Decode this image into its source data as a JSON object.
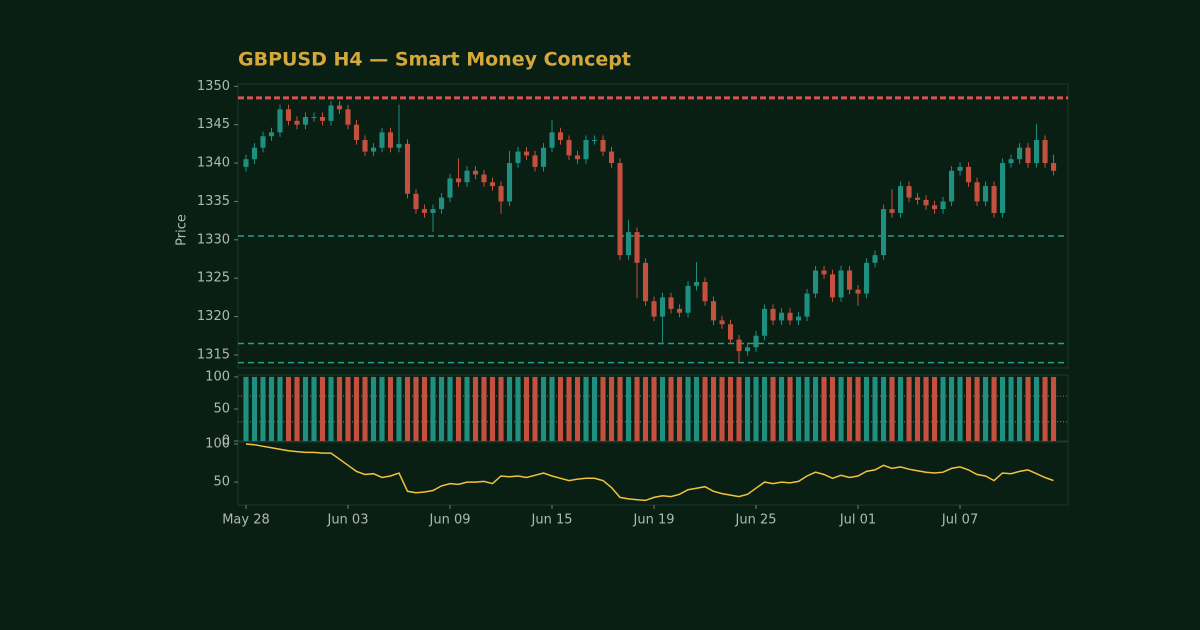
{
  "chart_data": [
    {
      "type": "candlestick",
      "title": "GBPUSD H4 — Smart Money Concept",
      "ylabel": "Price",
      "x": [
        0,
        1,
        2,
        3,
        4,
        5,
        6,
        7,
        8,
        9,
        10,
        11,
        12,
        13,
        14,
        15,
        16,
        17,
        18,
        19,
        20,
        21,
        22,
        23,
        24,
        25,
        26,
        27,
        28,
        29,
        30,
        31,
        32,
        33,
        34,
        35,
        36,
        37,
        38,
        39,
        40,
        41,
        42,
        43,
        44,
        45,
        46,
        47,
        48,
        49,
        50,
        51,
        52,
        53,
        54,
        55,
        56,
        57,
        58,
        59,
        60,
        61,
        62,
        63,
        64,
        65,
        66,
        67,
        68,
        69,
        70,
        71,
        72,
        73,
        74,
        75,
        76,
        77,
        78,
        79,
        80,
        81,
        82,
        83,
        84,
        85,
        86,
        87,
        88,
        89,
        90,
        91,
        92,
        93,
        94,
        95
      ],
      "open": [
        1339.5,
        1340.5,
        1342,
        1343.5,
        1344,
        1347,
        1345.5,
        1345,
        1346,
        1346,
        1345.5,
        1347.5,
        1347,
        1345,
        1343,
        1341.5,
        1342,
        1344,
        1342,
        1342.5,
        1336,
        1334,
        1333.5,
        1334,
        1335.5,
        1338,
        1337.5,
        1339,
        1338.5,
        1337.5,
        1337,
        1335,
        1340,
        1341.5,
        1341,
        1339.5,
        1342,
        1344,
        1343,
        1341,
        1340.5,
        1343,
        1343,
        1341.5,
        1340,
        1328,
        1331,
        1327,
        1322,
        1320,
        1322.5,
        1321,
        1320.5,
        1324,
        1324.5,
        1322,
        1319.5,
        1319,
        1317,
        1315.5,
        1316,
        1317.5,
        1321,
        1319.5,
        1320.5,
        1319.5,
        1320,
        1323,
        1326,
        1325.5,
        1322.5,
        1326,
        1323.5,
        1323,
        1327,
        1328,
        1334,
        1333.5,
        1337,
        1335.5,
        1335.2,
        1334.5,
        1334,
        1335,
        1339,
        1339.5,
        1337.5,
        1335,
        1337,
        1333.5,
        1340,
        1340.5,
        1342,
        1340,
        1343,
        1340
      ],
      "high": [
        1341.1,
        1342.6,
        1344.1,
        1344.6,
        1347.6,
        1347.6,
        1346.1,
        1346.6,
        1346.6,
        1346.6,
        1348.1,
        1348.1,
        1347.6,
        1345.6,
        1343.6,
        1342.6,
        1344.6,
        1344.6,
        1347.6,
        1343.1,
        1336.6,
        1334.6,
        1334.6,
        1336.1,
        1338.6,
        1340.6,
        1339.6,
        1339.6,
        1339.1,
        1338.1,
        1337.6,
        1341.6,
        1342.1,
        1342.1,
        1341.6,
        1342.6,
        1345.6,
        1344.6,
        1343.6,
        1341.6,
        1343.6,
        1343.6,
        1343.6,
        1342.1,
        1340.6,
        1332.6,
        1331.6,
        1327.6,
        1322.6,
        1323.1,
        1323.1,
        1321.6,
        1324.6,
        1327.1,
        1325.1,
        1322.6,
        1320.1,
        1319.6,
        1317.6,
        1316.6,
        1318.1,
        1321.6,
        1321.6,
        1321.1,
        1321.1,
        1320.6,
        1323.6,
        1326.6,
        1326.6,
        1326.1,
        1326.6,
        1326.6,
        1324.1,
        1327.6,
        1328.6,
        1334.6,
        1336.6,
        1337.6,
        1337.6,
        1336.1,
        1335.8,
        1335.1,
        1335.6,
        1339.6,
        1340.1,
        1340.1,
        1338.1,
        1337.6,
        1337.6,
        1340.6,
        1341.1,
        1342.6,
        1342.6,
        1345.1,
        1343.6,
        1341.1
      ],
      "low": [
        1338.9,
        1339.9,
        1341.4,
        1342.9,
        1343.4,
        1344.9,
        1344.4,
        1344.4,
        1345.4,
        1344.9,
        1344.9,
        1346.4,
        1344.4,
        1342.4,
        1340.9,
        1340.9,
        1341.4,
        1341.4,
        1341.4,
        1335.4,
        1333.4,
        1332.9,
        1331.0,
        1333.4,
        1334.9,
        1336.9,
        1336.9,
        1337.9,
        1336.9,
        1336.4,
        1333.4,
        1334.4,
        1339.4,
        1340.4,
        1338.9,
        1338.9,
        1341.4,
        1342.4,
        1340.4,
        1339.9,
        1339.9,
        1342.4,
        1340.9,
        1339.4,
        1327.4,
        1327.4,
        1322.4,
        1321.4,
        1319.4,
        1316.4,
        1320.4,
        1319.9,
        1319.9,
        1323.4,
        1321.4,
        1318.9,
        1318.4,
        1316.4,
        1313.9,
        1314.9,
        1315.4,
        1316.9,
        1318.9,
        1318.9,
        1318.9,
        1318.9,
        1319.4,
        1322.4,
        1324.9,
        1321.9,
        1321.9,
        1322.9,
        1321.4,
        1322.4,
        1326.4,
        1327.4,
        1332.9,
        1332.9,
        1334.9,
        1334.6,
        1333.9,
        1333.4,
        1333.4,
        1334.4,
        1338.4,
        1336.9,
        1334.4,
        1334.4,
        1332.9,
        1332.9,
        1339.4,
        1339.9,
        1339.4,
        1339.4,
        1339.4,
        1338.4
      ],
      "close": [
        1340.5,
        1342,
        1343.5,
        1344,
        1347,
        1345.5,
        1345,
        1346,
        1346,
        1345.5,
        1347.5,
        1347,
        1345,
        1343,
        1341.5,
        1342,
        1344,
        1342,
        1342.5,
        1336,
        1334,
        1333.5,
        1334,
        1335.5,
        1338,
        1337.5,
        1339,
        1338.5,
        1337.5,
        1337,
        1335,
        1340,
        1341.5,
        1341,
        1339.5,
        1342,
        1344,
        1343,
        1341,
        1340.5,
        1343,
        1343,
        1341.5,
        1340,
        1328,
        1331,
        1327,
        1322,
        1320,
        1322.5,
        1321,
        1320.5,
        1324,
        1324.5,
        1322,
        1319.5,
        1319,
        1317,
        1315.5,
        1316,
        1317.5,
        1321,
        1319.5,
        1320.5,
        1319.5,
        1320,
        1323,
        1326,
        1325.5,
        1322.5,
        1326,
        1323.5,
        1323,
        1327,
        1328,
        1334,
        1333.5,
        1337,
        1335.5,
        1335.2,
        1334.5,
        1334,
        1335,
        1339,
        1339.5,
        1337.5,
        1335,
        1337,
        1333.5,
        1340,
        1340.5,
        1342,
        1340,
        1343,
        1340,
        1339
      ],
      "up_color": "#1f8f80",
      "down_color": "#c4503f",
      "levels": [
        {
          "value": 1348.5,
          "color": "#d9534f"
        },
        {
          "value": 1330.5,
          "color": "#2a9d8f"
        },
        {
          "value": 1316.5,
          "color": "#2a9d8f"
        },
        {
          "value": 1314,
          "color": "#2a9d8f"
        }
      ],
      "xlim": [
        -0.94,
        96.7
      ],
      "ylim": [
        1313.3,
        1350.3
      ],
      "yticks": [
        1315,
        1320,
        1325,
        1330,
        1335,
        1340,
        1345,
        1350
      ]
    },
    {
      "type": "bar",
      "values": [
        100,
        100,
        100,
        100,
        100,
        100,
        100,
        100,
        100,
        100,
        100,
        100,
        100,
        100,
        100,
        100,
        100,
        100,
        100,
        100,
        100,
        100,
        100,
        100,
        100,
        100,
        100,
        100,
        100,
        100,
        100,
        100,
        100,
        100,
        100,
        100,
        100,
        100,
        100,
        100,
        100,
        100,
        100,
        100,
        100,
        100,
        100,
        100,
        100,
        100,
        100,
        100,
        100,
        100,
        100,
        100,
        100,
        100,
        100,
        100,
        100,
        100,
        100,
        100,
        100,
        100,
        100,
        100,
        100,
        100,
        100,
        100,
        100,
        100,
        100,
        100,
        100,
        100,
        100,
        100,
        100,
        100,
        100,
        100,
        100,
        100,
        100,
        100,
        100,
        100,
        100,
        100,
        100,
        100,
        100,
        100
      ],
      "levels": [
        70,
        30
      ],
      "xlim": [
        -0.94,
        96.7
      ],
      "ylim": [
        0,
        103
      ],
      "yticks": [
        0,
        50,
        100
      ]
    },
    {
      "type": "line",
      "color": "#f2c23e",
      "values": [
        100,
        99,
        97,
        95,
        93,
        91,
        90,
        89,
        89,
        88,
        88,
        80,
        72,
        64,
        60,
        61,
        56,
        58,
        62,
        38,
        36,
        37,
        39,
        45,
        48,
        47,
        50,
        50,
        51,
        48,
        58,
        57,
        58,
        56,
        59,
        62,
        58,
        55,
        52,
        54,
        55,
        55,
        52,
        43,
        30,
        28,
        27,
        26,
        30,
        32,
        31,
        34,
        40,
        42,
        44,
        38,
        35,
        33,
        31,
        34,
        42,
        50,
        48,
        50,
        49,
        51,
        58,
        63,
        60,
        55,
        59,
        56,
        58,
        64,
        66,
        72,
        68,
        70,
        67,
        65,
        63,
        62,
        63,
        68,
        70,
        66,
        60,
        58,
        52,
        62,
        61,
        64,
        66,
        61,
        56,
        52
      ],
      "xlim": [
        -0.94,
        96.7
      ],
      "ylim": [
        20,
        102.6
      ],
      "yticks": [
        50,
        100
      ],
      "xticks": [
        {
          "value": 0,
          "label": "May 28"
        },
        {
          "value": 12,
          "label": "Jun 03"
        },
        {
          "value": 24,
          "label": "Jun 09"
        },
        {
          "value": 36,
          "label": "Jun 15"
        },
        {
          "value": 48,
          "label": "Jun 19"
        },
        {
          "value": 60,
          "label": "Jun 25"
        },
        {
          "value": 72,
          "label": "Jul 01"
        },
        {
          "value": 84,
          "label": "Jul 07"
        }
      ]
    }
  ]
}
